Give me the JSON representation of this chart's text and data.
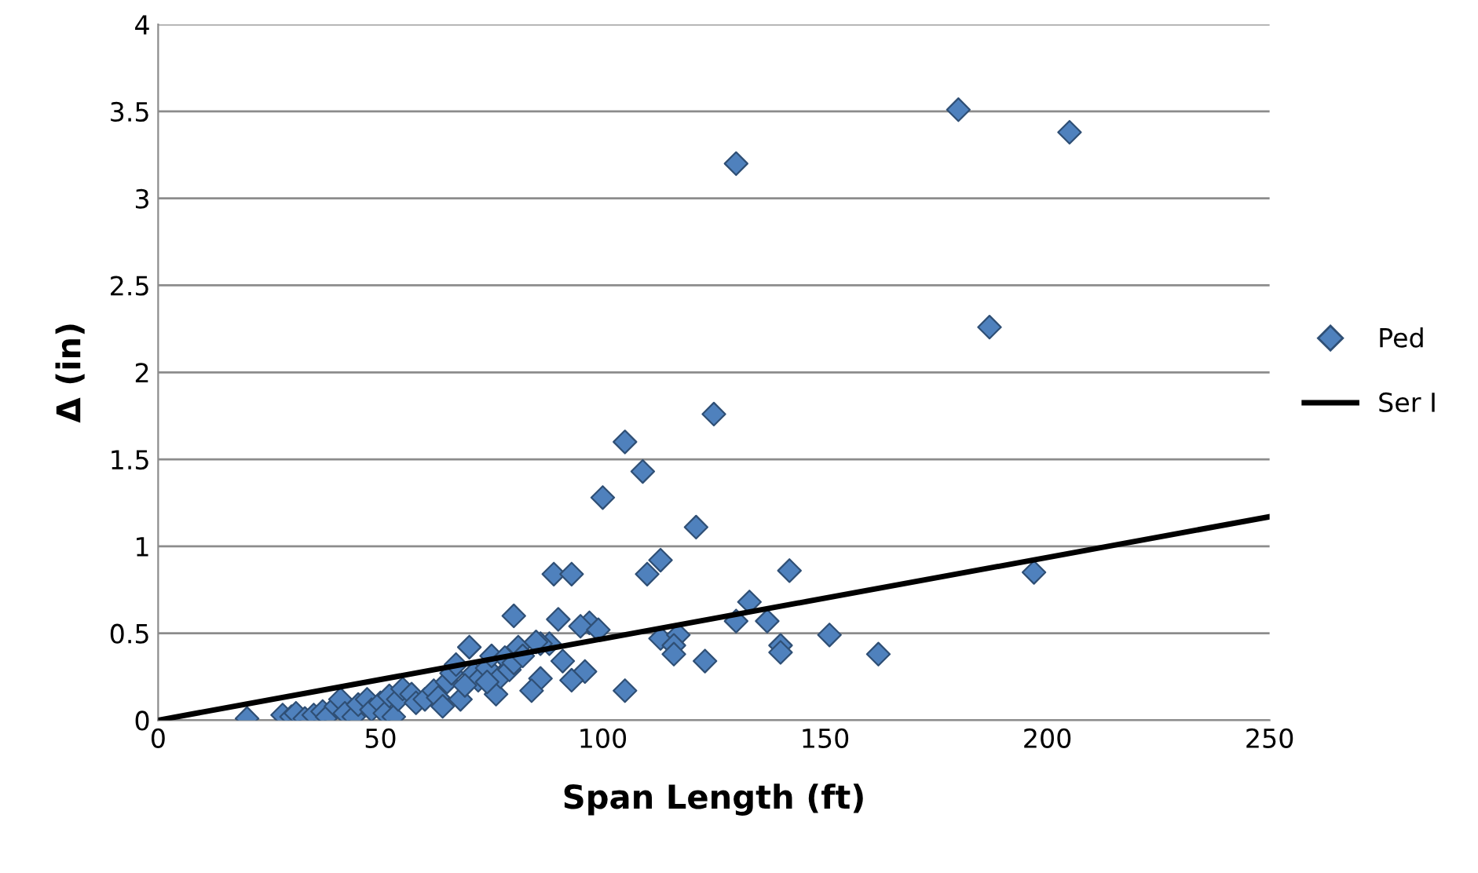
{
  "chart_data": {
    "type": "scatter",
    "xlabel": "Span Length (ft)",
    "ylabel": "Δ (in)",
    "xlim": [
      0,
      250
    ],
    "xticks": [
      0,
      50,
      100,
      150,
      200,
      250
    ],
    "ylim": [
      0,
      4
    ],
    "yticks": [
      0,
      0.5,
      1,
      1.5,
      2,
      2.5,
      3,
      3.5,
      4
    ],
    "grid": "y",
    "legend": "right",
    "marker": "diamond",
    "series": [
      {
        "name": "Ped",
        "color": "#4f81bd",
        "x": [
          180,
          205,
          130,
          187,
          197,
          125,
          105,
          109,
          100,
          121,
          113,
          142,
          110,
          89,
          93,
          133,
          80,
          90,
          130,
          137,
          97,
          95,
          99,
          113,
          117,
          116,
          140,
          140,
          151,
          162,
          116,
          123,
          105,
          96,
          93,
          86,
          84,
          91,
          88,
          86,
          20,
          28,
          30,
          31,
          33,
          35,
          37,
          38,
          40,
          41,
          42,
          44,
          45,
          47,
          48,
          50,
          51,
          52,
          53,
          54,
          55,
          57,
          58,
          60,
          62,
          63,
          64,
          65,
          66,
          67,
          68,
          70,
          71,
          72,
          74,
          75,
          76,
          77,
          78,
          79,
          80,
          81,
          82,
          85,
          74,
          69
        ],
        "values": [
          3.51,
          3.38,
          3.2,
          2.26,
          0.85,
          1.76,
          1.6,
          1.43,
          1.28,
          1.11,
          0.92,
          0.86,
          0.84,
          0.84,
          0.84,
          0.68,
          0.6,
          0.58,
          0.57,
          0.57,
          0.56,
          0.54,
          0.52,
          0.47,
          0.49,
          0.43,
          0.43,
          0.39,
          0.49,
          0.38,
          0.38,
          0.34,
          0.17,
          0.28,
          0.23,
          0.24,
          0.17,
          0.34,
          0.44,
          0.44,
          0.01,
          0.03,
          0.02,
          0.04,
          0.01,
          0.03,
          0.05,
          0.02,
          0.08,
          0.12,
          0.04,
          0.02,
          0.09,
          0.12,
          0.06,
          0.1,
          0.04,
          0.14,
          0.02,
          0.12,
          0.18,
          0.15,
          0.1,
          0.12,
          0.17,
          0.13,
          0.08,
          0.22,
          0.27,
          0.32,
          0.12,
          0.42,
          0.27,
          0.23,
          0.3,
          0.37,
          0.15,
          0.25,
          0.36,
          0.29,
          0.33,
          0.42,
          0.37,
          0.45,
          0.22,
          0.2
        ]
      },
      {
        "name": "Ser I",
        "color": "#000000",
        "type": "line",
        "marker": "none",
        "line_style": "solid",
        "x": [
          0,
          250
        ],
        "values": [
          0,
          1.17
        ]
      }
    ]
  }
}
